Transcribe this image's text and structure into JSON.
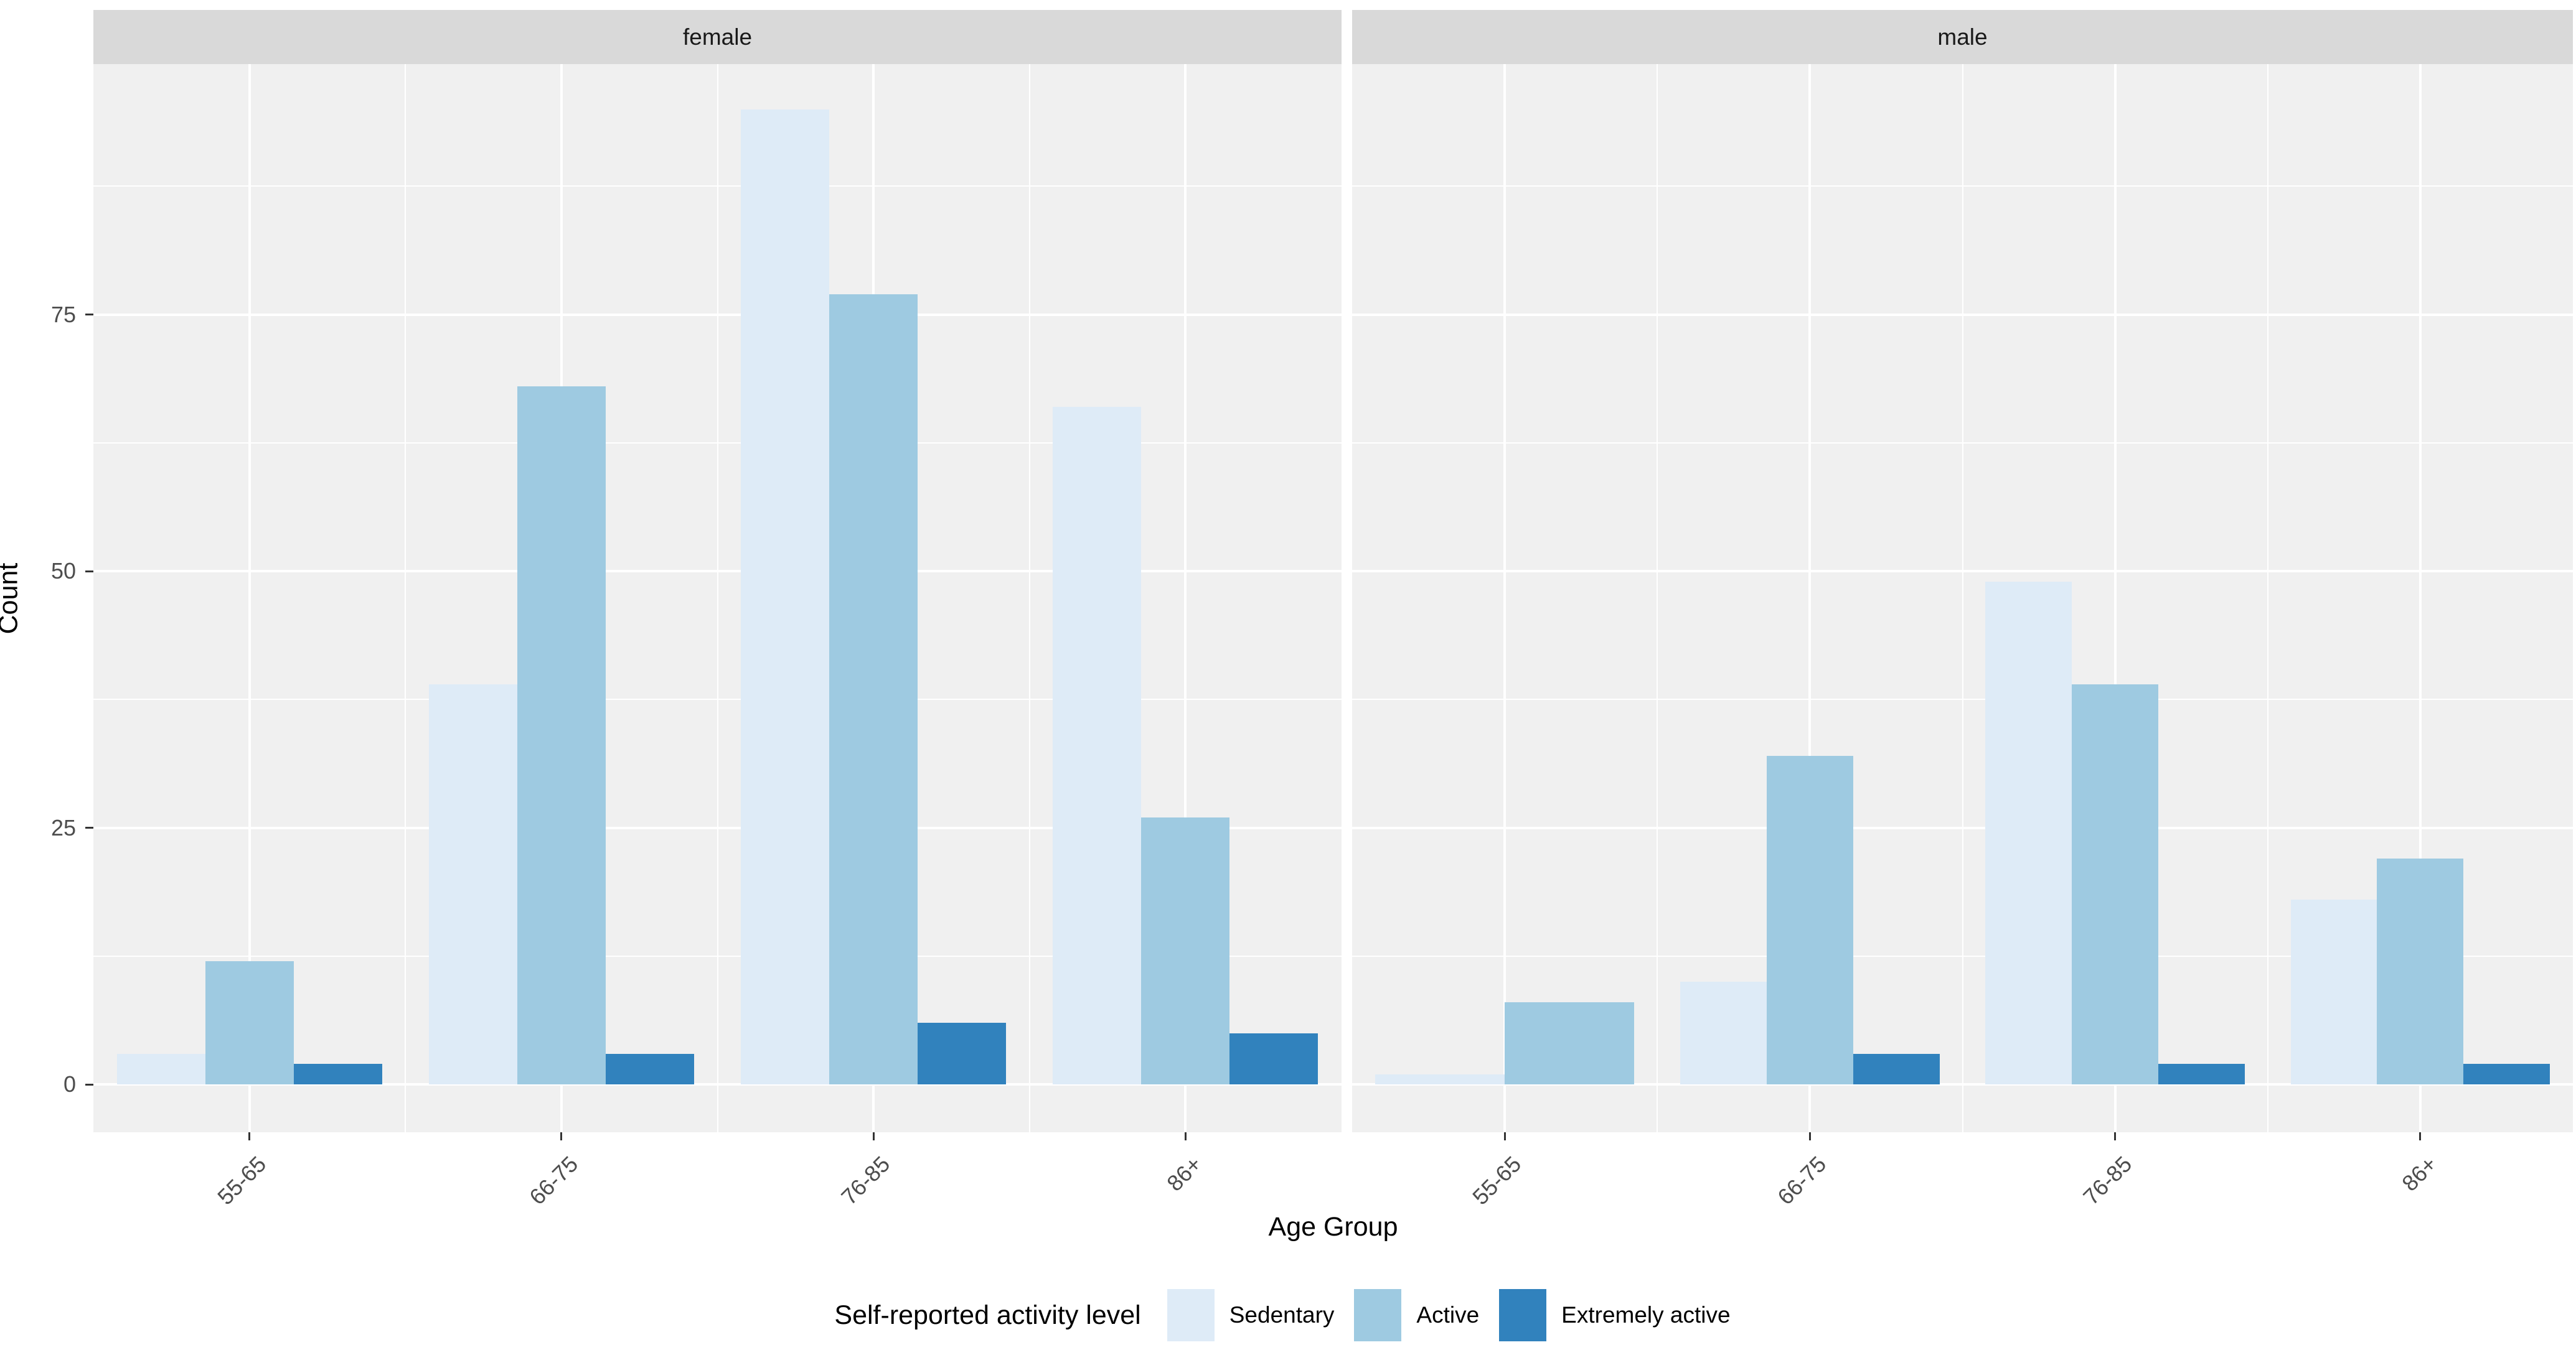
{
  "chart_data": {
    "type": "bar",
    "grouping": "dodge",
    "title": "",
    "xlabel": "Age Group",
    "ylabel": "Count",
    "categories": [
      "55-65",
      "66-75",
      "76-85",
      "86+"
    ],
    "series": [
      {
        "name": "Sedentary",
        "color": "#DEEBF7"
      },
      {
        "name": "Active",
        "color": "#9ECAE1"
      },
      {
        "name": "Extremely active",
        "color": "#3182BD"
      }
    ],
    "facets": [
      {
        "label": "female",
        "series_values": [
          [
            3,
            39,
            95,
            66
          ],
          [
            12,
            68,
            77,
            26
          ],
          [
            2,
            3,
            6,
            5
          ]
        ]
      },
      {
        "label": "male",
        "series_values": [
          [
            1,
            10,
            49,
            18
          ],
          [
            8,
            32,
            39,
            22
          ],
          [
            0,
            3,
            2,
            2
          ]
        ]
      }
    ],
    "y_ticks": [
      0,
      25,
      50,
      75
    ],
    "y_tick_labels": [
      "0",
      "25",
      "50",
      "75"
    ],
    "y_minor_gridlines": [
      12.5,
      37.5,
      62.5,
      87.5
    ],
    "ylim_display": [
      -4.7,
      99.4
    ],
    "grid": true,
    "legend_position": "bottom",
    "legend_title": "Self-reported activity level",
    "note_missing_bar": "male 55-65 Extremely active = 0 (bar absent, remaining two bars widened)"
  },
  "style": {
    "background": "#FFFFFF",
    "panel_background": "#F0F0F0",
    "strip_background": "#D9D9D9",
    "gridline_color": "#FFFFFF",
    "axis_text_color": "#4D4D4D",
    "axis_tick_color": "#333333",
    "title_text_color": "#000000",
    "strip_text_color": "#1A1A1A"
  }
}
